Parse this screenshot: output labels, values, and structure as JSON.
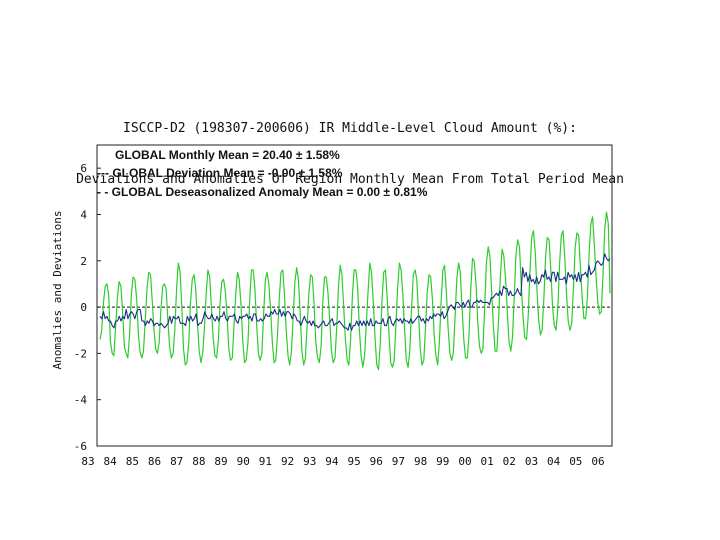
{
  "chart_data": {
    "type": "line",
    "title": "ISCCP-D2 (198307-200606) IR Middle-Level Cloud Amount (%):",
    "subtitle": "Deviations and Anomalies Of Region Monthly Mean From Total Period Mean",
    "ylabel": "Anomalies and Deviations",
    "xlabel": "",
    "ylim": [
      -6,
      7
    ],
    "y_ticks": [
      "6",
      "4",
      "2",
      "0",
      "-2",
      "-4",
      "-6"
    ],
    "x_tick_labels": [
      "83",
      "84",
      "85",
      "86",
      "87",
      "88",
      "89",
      "90",
      "91",
      "92",
      "93",
      "94",
      "95",
      "96",
      "97",
      "98",
      "99",
      "00",
      "01",
      "02",
      "03",
      "04",
      "05",
      "06"
    ],
    "x_range": [
      "1983-07",
      "2006-06"
    ],
    "zero_line": "dashed",
    "grid": false,
    "legend": {
      "placement": "top-left",
      "entries": [
        "GLOBAL Monthly Mean = 20.40 ± 1.58%",
        "--- GLOBAL Deviation Mean = -0.00 ± 1.58%",
        "- - GLOBAL Deseasonalized Anomaly Mean = 0.00 ± 0.81%"
      ]
    },
    "series": [
      {
        "color": "#2ecc2e",
        "style": "solid",
        "values": [
          -1.4,
          -1.0,
          0.2,
          0.9,
          1.0,
          0.5,
          -1.5,
          -2.0,
          -2.1,
          -0.8,
          0.4,
          1.1,
          0.9,
          -0.2,
          -1.7,
          -2.0,
          -2.2,
          -1.2,
          0.5,
          1.3,
          1.2,
          0.4,
          -1.1,
          -1.9,
          -2.2,
          -1.9,
          -0.5,
          0.8,
          1.5,
          1.4,
          0.3,
          -1.0,
          -1.8,
          -2.0,
          -1.5,
          -0.1,
          0.9,
          1.0,
          0.8,
          -0.6,
          -1.7,
          -2.2,
          -2.0,
          -1.0,
          0.8,
          1.9,
          1.5,
          0.0,
          -1.8,
          -2.5,
          -2.4,
          -1.5,
          0.2,
          1.2,
          1.4,
          0.8,
          -0.7,
          -1.9,
          -2.4,
          -2.0,
          -0.9,
          0.6,
          1.6,
          1.3,
          0.0,
          -1.3,
          -2.1,
          -2.2,
          -1.4,
          0.2,
          1.1,
          1.2,
          0.7,
          -0.4,
          -1.8,
          -2.3,
          -2.2,
          -0.8,
          0.6,
          1.5,
          1.2,
          0.1,
          -1.4,
          -2.4,
          -2.3,
          -1.5,
          0.3,
          1.6,
          1.6,
          0.8,
          -0.8,
          -2.0,
          -2.3,
          -2.0,
          -0.3,
          1.2,
          1.5,
          1.0,
          -0.1,
          -1.5,
          -2.4,
          -2.3,
          -1.2,
          0.4,
          1.5,
          1.6,
          0.5,
          -1.0,
          -2.1,
          -2.5,
          -1.9,
          -0.4,
          1.1,
          1.7,
          1.2,
          -0.3,
          -1.9,
          -2.5,
          -2.2,
          -0.8,
          0.6,
          1.4,
          1.3,
          0.1,
          -1.5,
          -2.2,
          -2.4,
          -1.7,
          0.2,
          1.3,
          1.3,
          0.6,
          -0.6,
          -1.9,
          -2.4,
          -2.2,
          -0.9,
          0.9,
          1.8,
          1.4,
          0.0,
          -1.4,
          -2.3,
          -2.5,
          -1.4,
          0.5,
          1.6,
          1.6,
          0.9,
          -1.0,
          -2.1,
          -2.6,
          -2.1,
          -0.7,
          0.7,
          1.9,
          1.5,
          0.2,
          -1.3,
          -2.5,
          -2.7,
          -1.6,
          0.3,
          1.5,
          1.6,
          0.4,
          -1.1,
          -2.4,
          -2.6,
          -2.3,
          -0.8,
          0.8,
          1.9,
          1.6,
          0.5,
          -1.0,
          -2.3,
          -2.6,
          -1.9,
          0.0,
          1.4,
          1.6,
          1.2,
          -0.3,
          -1.8,
          -2.5,
          -2.3,
          -0.9,
          0.6,
          1.4,
          1.3,
          0.3,
          -1.2,
          -2.1,
          -2.5,
          -1.5,
          0.3,
          1.6,
          1.8,
          0.6,
          -0.9,
          -2.0,
          -2.3,
          -2.0,
          -0.4,
          1.2,
          1.9,
          1.5,
          0.0,
          -1.4,
          -2.2,
          -2.2,
          -1.2,
          0.8,
          2.1,
          2.0,
          1.0,
          -0.6,
          -1.7,
          -2.0,
          -1.8,
          0.0,
          1.9,
          2.6,
          2.2,
          0.7,
          -0.8,
          -1.9,
          -1.9,
          -0.5,
          1.3,
          2.5,
          2.2,
          1.2,
          -0.2,
          -1.5,
          -1.9,
          -1.3,
          0.5,
          2.3,
          2.9,
          2.6,
          1.0,
          -0.4,
          -1.3,
          -1.4,
          -0.4,
          1.5,
          3.0,
          3.3,
          2.4,
          0.8,
          -0.5,
          -1.2,
          -1.0,
          0.4,
          2.2,
          3.0,
          2.9,
          1.6,
          0.0,
          -0.8,
          -1.0,
          -0.1,
          1.8,
          3.1,
          3.3,
          2.2,
          0.6,
          -0.6,
          -1.0,
          -0.7,
          0.8,
          2.6,
          3.2,
          3.1,
          1.7,
          0.4,
          -0.5,
          -0.5,
          0.4,
          2.3,
          3.6,
          3.9,
          2.7,
          1.3,
          0.2,
          -0.3,
          -0.2,
          1.4,
          3.4,
          4.1,
          3.6,
          0.6
        ]
      },
      {
        "color": "#1a2e8c",
        "style": "solid",
        "values": [
          -0.4,
          -0.5,
          -0.2,
          -0.5,
          -0.4,
          -0.6,
          -0.6,
          -0.8,
          -0.9,
          -0.6,
          -0.6,
          -0.4,
          -0.6,
          -0.4,
          -0.5,
          -0.1,
          -0.5,
          -0.3,
          -0.2,
          -0.3,
          -0.5,
          -0.2,
          -0.1,
          -0.1,
          -0.6,
          -0.6,
          -0.8,
          -0.6,
          -0.7,
          -0.5,
          -0.6,
          -0.8,
          -0.7,
          -0.7,
          -0.8,
          -0.7,
          -0.8,
          -0.9,
          -0.8,
          -0.7,
          -0.4,
          -0.7,
          -0.4,
          -0.5,
          -0.5,
          -0.4,
          -0.7,
          -0.7,
          -0.7,
          -0.8,
          -0.4,
          -0.6,
          -0.4,
          -0.6,
          -0.5,
          -0.3,
          -0.8,
          -0.7,
          -0.7,
          -0.5,
          -0.2,
          -0.4,
          -0.5,
          -0.5,
          -0.3,
          -0.5,
          -0.6,
          -0.4,
          -0.6,
          -0.4,
          -0.4,
          -0.2,
          -0.5,
          -0.6,
          -0.4,
          -0.4,
          -0.4,
          -0.3,
          -0.6,
          -0.7,
          -0.4,
          -0.5,
          -0.4,
          -0.4,
          -0.3,
          -0.5,
          -0.4,
          -0.6,
          -0.3,
          -0.3,
          -0.6,
          -0.6,
          -0.5,
          -0.6,
          -0.5,
          -0.3,
          -0.4,
          -0.4,
          -0.2,
          -0.3,
          -0.1,
          -0.3,
          -0.3,
          -0.1,
          -0.4,
          -0.2,
          -0.4,
          -0.2,
          -0.2,
          -0.3,
          -0.5,
          -0.3,
          -0.4,
          -0.6,
          -0.6,
          -0.8,
          -0.6,
          -0.4,
          -0.6,
          -0.7,
          -0.6,
          -0.8,
          -0.6,
          -0.8,
          -0.8,
          -0.9,
          -0.8,
          -0.7,
          -0.6,
          -0.8,
          -0.8,
          -0.7,
          -0.6,
          -0.5,
          -0.8,
          -0.7,
          -0.7,
          -0.6,
          -0.7,
          -0.8,
          -0.9,
          -0.9,
          -1.0,
          -0.7,
          -1.0,
          -0.8,
          -0.8,
          -0.6,
          -0.8,
          -0.6,
          -0.8,
          -0.6,
          -0.8,
          -0.6,
          -0.8,
          -0.5,
          -0.8,
          -0.8,
          -0.6,
          -0.7,
          -0.7,
          -0.7,
          -0.5,
          -0.8,
          -0.8,
          -0.5,
          -0.4,
          -0.7,
          -0.8,
          -0.6,
          -0.5,
          -0.6,
          -0.5,
          -0.7,
          -0.5,
          -0.6,
          -0.6,
          -0.7,
          -0.5,
          -0.7,
          -0.6,
          -0.5,
          -0.4,
          -0.4,
          -0.6,
          -0.5,
          -0.7,
          -0.5,
          -0.6,
          -0.4,
          -0.5,
          -0.3,
          -0.4,
          -0.3,
          -0.3,
          -0.4,
          -0.2,
          -0.5,
          -0.4,
          -0.2,
          0.0,
          0.1,
          0.0,
          -0.1,
          0.2,
          0.2,
          0.1,
          0.0,
          0.2,
          0.0,
          0.2,
          0.3,
          0.0,
          0.0,
          0.2,
          0.2,
          0.3,
          0.2,
          0.3,
          0.2,
          0.2,
          0.2,
          0.2,
          0.1,
          0.4,
          0.4,
          0.5,
          0.6,
          0.5,
          0.7,
          0.5,
          0.9,
          0.8,
          0.8,
          0.5,
          0.7,
          0.5,
          0.5,
          0.6,
          0.8,
          0.6,
          0.5,
          1.7,
          1.3,
          1.5,
          1.1,
          1.4,
          1.1,
          1.2,
          1.0,
          1.3,
          1.0,
          1.1,
          1.4,
          1.3,
          1.6,
          1.2,
          1.3,
          1.1,
          1.5,
          1.5,
          1.1,
          1.5,
          1.2,
          1.2,
          1.2,
          1.3,
          1.0,
          1.5,
          1.3,
          1.4,
          1.2,
          1.4,
          1.1,
          1.5,
          1.1,
          1.4,
          1.4,
          1.5,
          1.3,
          1.8,
          1.4,
          1.5,
          1.6,
          1.9,
          2.0,
          1.9,
          1.8,
          1.9,
          2.3,
          2.1,
          2.0,
          2.1
        ]
      }
    ]
  }
}
